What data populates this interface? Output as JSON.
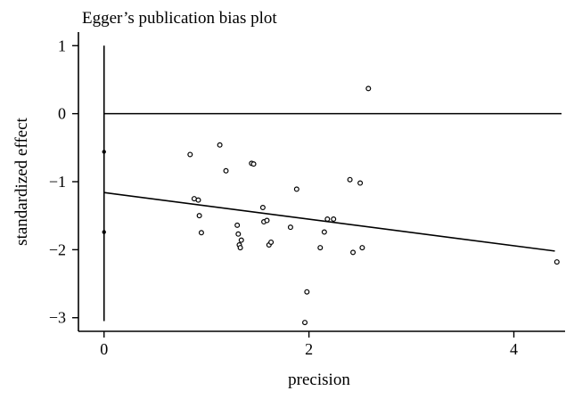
{
  "chart_data": {
    "type": "scatter",
    "title": "Egger’s publication bias plot",
    "xlabel": "precision",
    "ylabel": "standardized effect",
    "xlim": [
      -0.25,
      4.5
    ],
    "ylim": [
      -3.2,
      1.2
    ],
    "xticks": [
      0,
      2,
      4
    ],
    "yticks": [
      1,
      0,
      -1,
      -2,
      -3
    ],
    "xtick_labels": [
      "0",
      "2",
      "4"
    ],
    "ytick_labels": [
      "1",
      "0",
      "−1",
      "−2",
      "−3"
    ],
    "grid": false,
    "reference_line_y": 0,
    "zero_precision_axis": {
      "x": 0,
      "y_from": -3.05,
      "y_to": 1.0
    },
    "regression_line": {
      "x": [
        0,
        4.4
      ],
      "y": [
        -1.16,
        -2.02
      ]
    },
    "intercept_points": {
      "x": [
        0,
        0
      ],
      "y": [
        -0.56,
        -1.74
      ]
    },
    "series": [
      {
        "x": [
          0.84,
          0.88,
          0.92,
          0.93,
          0.95,
          1.13,
          1.19,
          1.44,
          1.46,
          1.3,
          1.31,
          1.32,
          1.33,
          1.34,
          1.55,
          1.56,
          1.59,
          1.61,
          1.63,
          1.82,
          1.88,
          1.96,
          1.98,
          2.11,
          2.15,
          2.18,
          2.24,
          2.4,
          2.43,
          2.5,
          2.52,
          2.58,
          4.42
        ],
        "y": [
          -0.6,
          -1.25,
          -1.27,
          -1.5,
          -1.75,
          -0.46,
          -0.84,
          -0.73,
          -0.74,
          -1.64,
          -1.77,
          -1.93,
          -1.97,
          -1.86,
          -1.38,
          -1.59,
          -1.57,
          -1.93,
          -1.89,
          -1.67,
          -1.11,
          -3.07,
          -2.62,
          -1.97,
          -1.74,
          -1.55,
          -1.55,
          -0.97,
          -2.04,
          -1.02,
          -1.97,
          0.37,
          -2.18
        ]
      }
    ]
  }
}
